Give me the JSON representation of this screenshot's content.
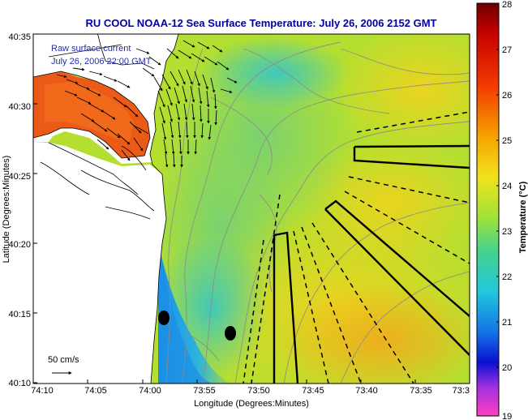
{
  "title": "RU COOL  NOAA-12  Sea Surface Temperature:  July 26, 2006 2152 GMT",
  "overlay": {
    "line1": "Raw surface current",
    "line2": "July 26, 2006 22:00 GMT"
  },
  "scale_label": "50 cm/s",
  "axes": {
    "xlabel": "Longitude (Degrees:Minutes)",
    "ylabel": "Latitude (Degrees:Minutes)",
    "xticks": [
      "74:10",
      "74:05",
      "74:00",
      "73:55",
      "73:50",
      "73:45",
      "73:40",
      "73:35",
      "73:3"
    ],
    "yticks": [
      "40:35",
      "40:30",
      "40:25",
      "40:20",
      "40:15",
      "40:10"
    ]
  },
  "colorbar": {
    "label": "Temperature (°C)",
    "ticks": [
      "28",
      "27",
      "26",
      "25",
      "24",
      "23",
      "22",
      "21",
      "20",
      "19"
    ],
    "min": 19,
    "max": 28
  },
  "colors": {
    "title": "#0000a0",
    "water_base": "#b8e02a",
    "cold": "#1fa7e6",
    "warm": "#f09a1e",
    "land": "#ffffff"
  }
}
